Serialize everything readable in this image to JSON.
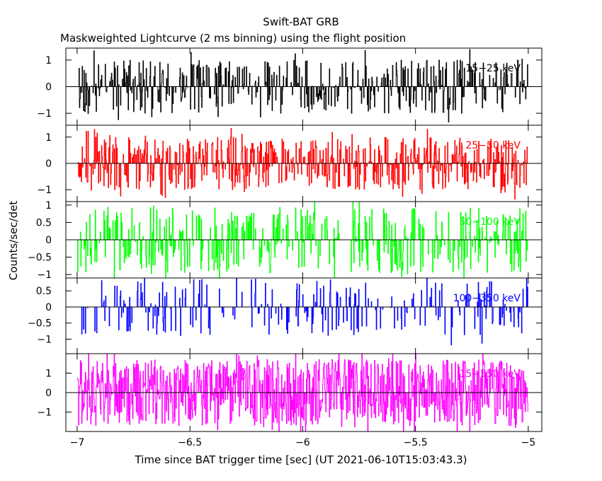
{
  "chart_data": {
    "type": "line",
    "title": "Swift-BAT GRB",
    "subtitle": "Maskweighted Lightcurve (2 ms binning) using the flight position",
    "xlabel": "Time since BAT trigger time [sec] (UT 2021-06-10T15:03:43.3)",
    "ylabel": "Counts/sec/det",
    "xlim": [
      -7.05,
      -4.94
    ],
    "x_ticks": [
      "−7",
      "−6.5",
      "−6",
      "−5.5",
      "−5"
    ],
    "x_tick_values": [
      -7,
      -6.5,
      -6,
      -5.5,
      -5
    ],
    "x_start": -7.0,
    "x_end": -5.0,
    "bin_width": 0.002,
    "panels": [
      {
        "band": "15−25 keV",
        "color": "#000000",
        "ylim": [
          -1.45,
          1.45
        ],
        "y_ticks": [
          "1",
          "0",
          "−1"
        ],
        "y_tick_values": [
          1,
          0,
          -1
        ],
        "amplitude": 1.0,
        "sparsity": 0.55,
        "seed": 11
      },
      {
        "band": "25−50 keV",
        "color": "#ff0000",
        "ylim": [
          -1.45,
          1.45
        ],
        "y_ticks": [
          "1",
          "0",
          "−1"
        ],
        "y_tick_values": [
          1,
          0,
          -1
        ],
        "amplitude": 1.0,
        "sparsity": 0.45,
        "seed": 23
      },
      {
        "band": "50−100 keV",
        "color": "#00ff00",
        "ylim": [
          -1.1,
          1.1
        ],
        "y_ticks": [
          "1",
          "0.5",
          "0",
          "−0.5",
          "−1"
        ],
        "y_tick_values": [
          1,
          0.5,
          0,
          -0.5,
          -1
        ],
        "amplitude": 0.95,
        "sparsity": 0.6,
        "seed": 37
      },
      {
        "band": "100−350 keV",
        "color": "#0000ff",
        "ylim": [
          -1.45,
          0.9
        ],
        "y_ticks": [
          "0.5",
          "0",
          "−0.5",
          "−1"
        ],
        "y_tick_values": [
          0.5,
          0,
          -0.5,
          -1
        ],
        "amplitude": 0.9,
        "sparsity": 0.75,
        "seed": 53
      },
      {
        "band": "15−350 keV",
        "color": "#ff00ff",
        "ylim": [
          -2.0,
          2.0
        ],
        "y_ticks": [
          "1",
          "0",
          "−1"
        ],
        "y_tick_values": [
          1,
          0,
          -1
        ],
        "amplitude": 1.7,
        "sparsity": 0.05,
        "seed": 71
      }
    ]
  }
}
